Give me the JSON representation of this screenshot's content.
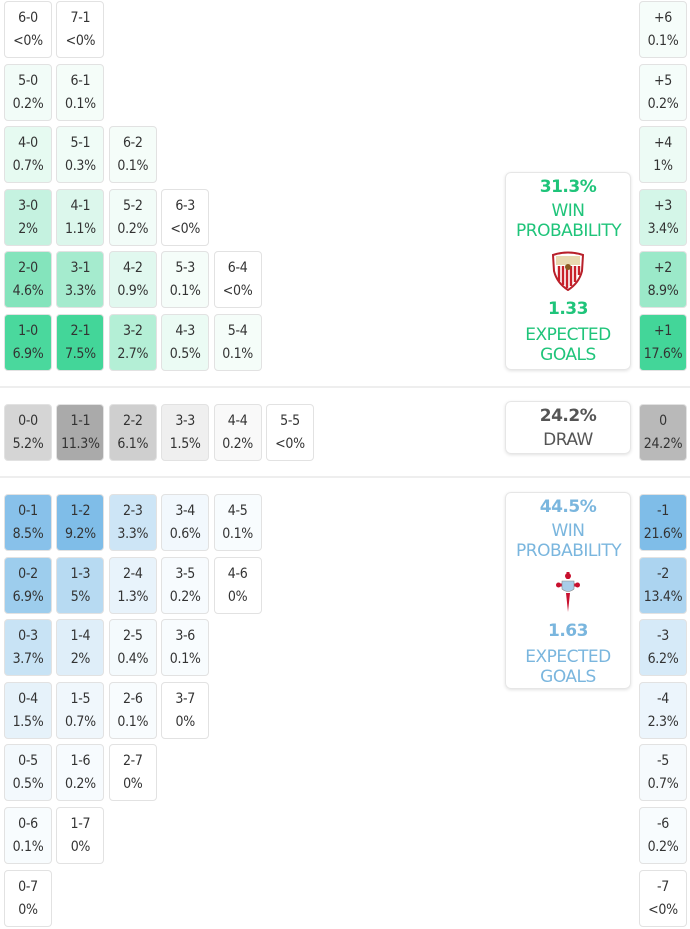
{
  "colors": {
    "home": "#43d699",
    "away": "#7fbde8",
    "draw": "#a9a9a9",
    "home_text": "#1fc47a",
    "away_text": "#7ab6de",
    "draw_text": "#555555"
  },
  "home_rows": [
    [
      {
        "score": "6-0",
        "prob": "<0%"
      },
      {
        "score": "7-1",
        "prob": "<0%"
      }
    ],
    [
      {
        "score": "5-0",
        "prob": "0.2%"
      },
      {
        "score": "6-1",
        "prob": "0.1%"
      }
    ],
    [
      {
        "score": "4-0",
        "prob": "0.7%"
      },
      {
        "score": "5-1",
        "prob": "0.3%"
      },
      {
        "score": "6-2",
        "prob": "0.1%"
      }
    ],
    [
      {
        "score": "3-0",
        "prob": "2%"
      },
      {
        "score": "4-1",
        "prob": "1.1%"
      },
      {
        "score": "5-2",
        "prob": "0.2%"
      },
      {
        "score": "6-3",
        "prob": "<0%"
      }
    ],
    [
      {
        "score": "2-0",
        "prob": "4.6%"
      },
      {
        "score": "3-1",
        "prob": "3.3%"
      },
      {
        "score": "4-2",
        "prob": "0.9%"
      },
      {
        "score": "5-3",
        "prob": "0.1%"
      },
      {
        "score": "6-4",
        "prob": "<0%"
      }
    ],
    [
      {
        "score": "1-0",
        "prob": "6.9%"
      },
      {
        "score": "2-1",
        "prob": "7.5%"
      },
      {
        "score": "3-2",
        "prob": "2.7%"
      },
      {
        "score": "4-3",
        "prob": "0.5%"
      },
      {
        "score": "5-4",
        "prob": "0.1%"
      }
    ]
  ],
  "home_margins": [
    {
      "score": "+6",
      "prob": "0.1%"
    },
    {
      "score": "+5",
      "prob": "0.2%"
    },
    {
      "score": "+4",
      "prob": "1%"
    },
    {
      "score": "+3",
      "prob": "3.4%"
    },
    {
      "score": "+2",
      "prob": "8.9%"
    },
    {
      "score": "+1",
      "prob": "17.6%"
    }
  ],
  "draw_row": [
    {
      "score": "0-0",
      "prob": "5.2%"
    },
    {
      "score": "1-1",
      "prob": "11.3%"
    },
    {
      "score": "2-2",
      "prob": "6.1%"
    },
    {
      "score": "3-3",
      "prob": "1.5%"
    },
    {
      "score": "4-4",
      "prob": "0.2%"
    },
    {
      "score": "5-5",
      "prob": "<0%"
    }
  ],
  "draw_margin": {
    "score": "0",
    "prob": "24.2%"
  },
  "away_rows": [
    [
      {
        "score": "0-1",
        "prob": "8.5%"
      },
      {
        "score": "1-2",
        "prob": "9.2%"
      },
      {
        "score": "2-3",
        "prob": "3.3%"
      },
      {
        "score": "3-4",
        "prob": "0.6%"
      },
      {
        "score": "4-5",
        "prob": "0.1%"
      }
    ],
    [
      {
        "score": "0-2",
        "prob": "6.9%"
      },
      {
        "score": "1-3",
        "prob": "5%"
      },
      {
        "score": "2-4",
        "prob": "1.3%"
      },
      {
        "score": "3-5",
        "prob": "0.2%"
      },
      {
        "score": "4-6",
        "prob": "0%"
      }
    ],
    [
      {
        "score": "0-3",
        "prob": "3.7%"
      },
      {
        "score": "1-4",
        "prob": "2%"
      },
      {
        "score": "2-5",
        "prob": "0.4%"
      },
      {
        "score": "3-6",
        "prob": "0.1%"
      }
    ],
    [
      {
        "score": "0-4",
        "prob": "1.5%"
      },
      {
        "score": "1-5",
        "prob": "0.7%"
      },
      {
        "score": "2-6",
        "prob": "0.1%"
      },
      {
        "score": "3-7",
        "prob": "0%"
      }
    ],
    [
      {
        "score": "0-5",
        "prob": "0.5%"
      },
      {
        "score": "1-6",
        "prob": "0.2%"
      },
      {
        "score": "2-7",
        "prob": "0%"
      }
    ],
    [
      {
        "score": "0-6",
        "prob": "0.1%"
      },
      {
        "score": "1-7",
        "prob": "0%"
      }
    ],
    [
      {
        "score": "0-7",
        "prob": "0%"
      }
    ]
  ],
  "away_margins": [
    {
      "score": "-1",
      "prob": "21.6%"
    },
    {
      "score": "-2",
      "prob": "13.4%"
    },
    {
      "score": "-3",
      "prob": "6.2%"
    },
    {
      "score": "-4",
      "prob": "2.3%"
    },
    {
      "score": "-5",
      "prob": "0.7%"
    },
    {
      "score": "-6",
      "prob": "0.2%"
    },
    {
      "score": "-7",
      "prob": "<0%"
    }
  ],
  "home_summary": {
    "win_pct": "31.3%",
    "win_label": "WIN PROBABILITY",
    "xg": "1.33",
    "xg_label": "EXPECTED GOALS",
    "logo": "sevilla-crest"
  },
  "draw_summary": {
    "pct": "24.2%",
    "label": "DRAW"
  },
  "away_summary": {
    "win_pct": "44.5%",
    "win_label": "WIN PROBABILITY",
    "xg": "1.63",
    "xg_label": "EXPECTED GOALS",
    "logo": "celta-crest"
  }
}
